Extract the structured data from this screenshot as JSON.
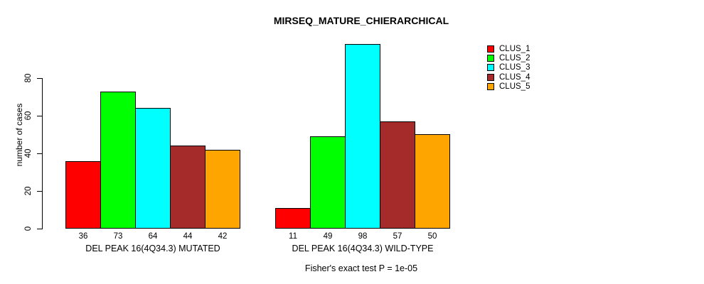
{
  "chart_data": {
    "type": "bar",
    "title": "MIRSEQ_MATURE_CHIERARCHICAL",
    "ylabel": "number of cases",
    "xlabel": "",
    "ylim": [
      0,
      80
    ],
    "yticks": [
      0,
      20,
      40,
      60,
      80
    ],
    "grid": false,
    "categories": [
      "DEL PEAK 16(4Q34.3) MUTATED",
      "DEL PEAK 16(4Q34.3) WILD-TYPE"
    ],
    "series": [
      {
        "name": "CLUS_1",
        "color": "#FF0000",
        "values": [
          36,
          11
        ]
      },
      {
        "name": "CLUS_2",
        "color": "#00FF00",
        "values": [
          73,
          49
        ]
      },
      {
        "name": "CLUS_3",
        "color": "#00FFFF",
        "values": [
          64,
          98
        ]
      },
      {
        "name": "CLUS_4",
        "color": "#A52A2A",
        "values": [
          44,
          57
        ]
      },
      {
        "name": "CLUS_5",
        "color": "#FFA500",
        "values": [
          42,
          50
        ]
      }
    ],
    "bar_value_labels_shown": true,
    "legend": {
      "position": "top-right",
      "entries": [
        "CLUS_1",
        "CLUS_2",
        "CLUS_3",
        "CLUS_4",
        "CLUS_5"
      ]
    },
    "annotation": "Fisher's exact test P = 1e-05"
  }
}
